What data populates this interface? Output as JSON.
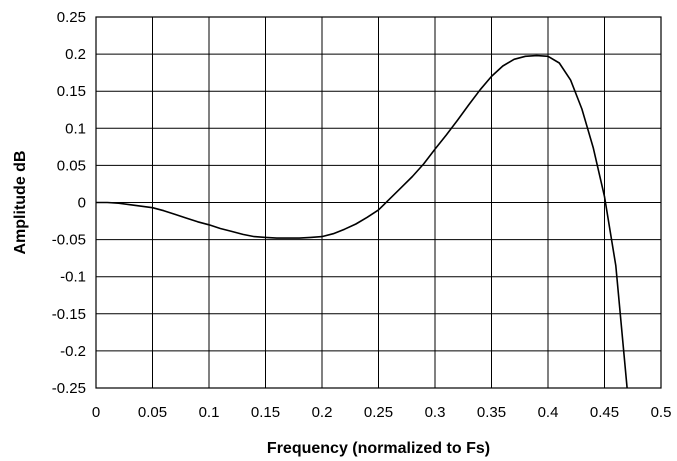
{
  "chart_data": {
    "type": "line",
    "title": "",
    "xlabel": "Frequency (normalized to Fs)",
    "ylabel": "Amplitude dB",
    "xlim": [
      0,
      0.5
    ],
    "ylim": [
      -0.25,
      0.25
    ],
    "x_ticks": [
      0,
      0.05,
      0.1,
      0.15,
      0.2,
      0.25,
      0.3,
      0.35,
      0.4,
      0.45,
      0.5
    ],
    "x_tick_labels": [
      "0",
      "0.05",
      "0.1",
      "0.15",
      "0.2",
      "0.25",
      "0.3",
      "0.35",
      "0.4",
      "0.45",
      "0.5"
    ],
    "y_ticks": [
      0.25,
      0.2,
      0.15,
      0.1,
      0.05,
      0,
      -0.05,
      -0.1,
      -0.15,
      -0.2,
      -0.25
    ],
    "y_tick_labels": [
      "0.25",
      "0.2",
      "0.15",
      "0.1",
      "0.05",
      "0",
      "-0.05",
      "-0.1",
      "-0.15",
      "-0.2",
      "-0.25"
    ],
    "grid": true,
    "legend": "none",
    "colors": {
      "line": "#000000",
      "grid": "#000000",
      "background": "#ffffff"
    },
    "series": [
      {
        "x": [
          0,
          0.01,
          0.02,
          0.03,
          0.04,
          0.05,
          0.06,
          0.07,
          0.08,
          0.09,
          0.1,
          0.11,
          0.12,
          0.13,
          0.14,
          0.15,
          0.16,
          0.17,
          0.18,
          0.19,
          0.2,
          0.21,
          0.22,
          0.23,
          0.24,
          0.25,
          0.26,
          0.27,
          0.28,
          0.29,
          0.3,
          0.31,
          0.32,
          0.33,
          0.34,
          0.35,
          0.36,
          0.37,
          0.38,
          0.39,
          0.4,
          0.41,
          0.42,
          0.43,
          0.44,
          0.45,
          0.46,
          0.47
        ],
        "values": [
          0,
          0,
          -0.001,
          -0.003,
          -0.005,
          -0.007,
          -0.011,
          -0.016,
          -0.021,
          -0.026,
          -0.03,
          -0.035,
          -0.039,
          -0.043,
          -0.046,
          -0.047,
          -0.048,
          -0.048,
          -0.048,
          -0.047,
          -0.046,
          -0.042,
          -0.036,
          -0.029,
          -0.02,
          -0.01,
          0.005,
          0.02,
          0.035,
          0.052,
          0.072,
          0.091,
          0.111,
          0.132,
          0.152,
          0.17,
          0.184,
          0.193,
          0.197,
          0.198,
          0.197,
          0.188,
          0.165,
          0.126,
          0.074,
          0.008,
          -0.085,
          -0.25
        ]
      }
    ]
  }
}
